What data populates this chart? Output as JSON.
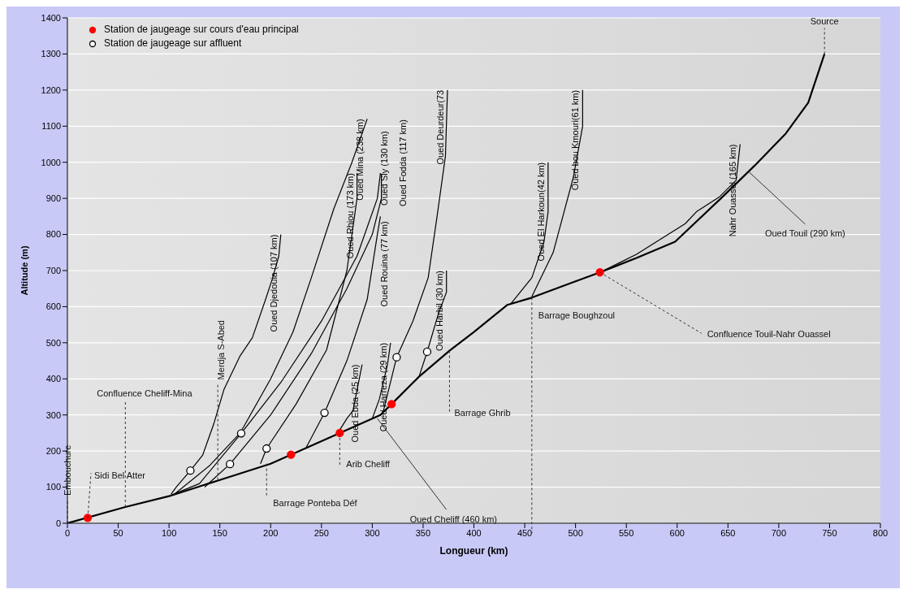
{
  "chart_data": {
    "type": "line",
    "xlabel": "Longueur (km)",
    "ylabel": "Altitude (m)",
    "xlim": [
      0,
      800
    ],
    "xticks": [
      0,
      50,
      100,
      150,
      200,
      250,
      300,
      350,
      400,
      450,
      500,
      550,
      600,
      650,
      700,
      750,
      800
    ],
    "ylim": [
      0,
      1400
    ],
    "yticks": [
      0,
      100,
      200,
      300,
      400,
      500,
      600,
      700,
      800,
      900,
      1000,
      1100,
      1200,
      1300,
      1400
    ],
    "grid": "y",
    "legend": "top left",
    "marker": "none",
    "line_style": "solid",
    "series": [
      {
        "color": "#000000",
        "x": [
          0,
          57,
          100,
          150,
          200,
          268,
          308,
          319,
          346,
          376,
          400,
          433,
          457,
          500,
          524
        ],
        "values": [
          0,
          45,
          75,
          120,
          165,
          250,
          300,
          330,
          406,
          478,
          530,
          605,
          625,
          670,
          695
        ]
      },
      {
        "color": "#000000",
        "x": [
          524,
          560,
          598,
          645,
          676,
          707,
          729,
          745
        ],
        "values": [
          695,
          735,
          780,
          905,
          990,
          1080,
          1165,
          1300
        ]
      },
      {
        "name": "Oued Djedouia (107 km)",
        "color": "#000000",
        "x": [
          102,
          107,
          121,
          133,
          144,
          154,
          170,
          182,
          195,
          202,
          208,
          210
        ],
        "values": [
          80,
          100,
          146,
          188,
          275,
          370,
          464,
          514,
          620,
          680,
          740,
          800
        ]
      },
      {
        "name": "Oued Mina (238 km)",
        "color": "#000000",
        "x": [
          105,
          140,
          170,
          200,
          222,
          240,
          262,
          280,
          295
        ],
        "values": [
          80,
          160,
          250,
          400,
          530,
          680,
          870,
          1000,
          1120
        ]
      },
      {
        "name": "Oued Sly (130 km)",
        "color": "#000000",
        "x": [
          100,
          130,
          171,
          210,
          250,
          285,
          305,
          308
        ],
        "values": [
          75,
          110,
          249,
          390,
          560,
          740,
          900,
          970
        ]
      },
      {
        "name": "Oued Rhiou (173 km)",
        "color": "#000000",
        "x": [
          190,
          196,
          225,
          255,
          275,
          285,
          285
        ],
        "values": [
          165,
          207,
          330,
          480,
          700,
          900,
          970
        ]
      },
      {
        "name": "Oued Fodda (117 km)",
        "color": "#000000",
        "x": [
          135,
          160,
          200,
          240,
          275,
          300,
          309,
          309
        ],
        "values": [
          100,
          164,
          300,
          470,
          650,
          800,
          900,
          968
        ]
      },
      {
        "name": "Oued Rouina (77 km)",
        "color": "#000000",
        "x": [
          235,
          253,
          275,
          295,
          305,
          308
        ],
        "values": [
          210,
          306,
          450,
          620,
          800,
          850
        ]
      },
      {
        "name": "Oued Ebda (25 km)",
        "color": "#000000",
        "x": [
          265,
          275,
          281,
          290
        ],
        "values": [
          245,
          290,
          312,
          440
        ]
      },
      {
        "name": "Oued Harreza (29 km)",
        "color": "#000000",
        "x": [
          300,
          307,
          315,
          318
        ],
        "values": [
          290,
          344,
          440,
          500
        ]
      },
      {
        "name": "Oued Deurdeur(73",
        "color": "#000000",
        "x": [
          310,
          324,
          340,
          355,
          364,
          372,
          374
        ],
        "values": [
          300,
          460,
          560,
          680,
          855,
          1017,
          1200
        ]
      },
      {
        "name": "Oued Harbil (30 km)",
        "color": "#000000",
        "x": [
          346,
          354,
          365,
          373,
          373
        ],
        "values": [
          406,
          475,
          580,
          640,
          700
        ]
      },
      {
        "name": "Oued El Harkoun(42 km)",
        "color": "#000000",
        "x": [
          436,
          457,
          469,
          473,
          473
        ],
        "values": [
          607,
          680,
          780,
          863,
          1000
        ]
      },
      {
        "name": "Oued bou Kmouri(61 km)",
        "color": "#000000",
        "x": [
          457,
          478,
          498,
          507,
          507
        ],
        "values": [
          628,
          750,
          960,
          1100,
          1200
        ]
      },
      {
        "name": "Nahr Ouassel (165 km)",
        "color": "#000000",
        "x": [
          524,
          560,
          608,
          619,
          642,
          658,
          662
        ],
        "values": [
          695,
          745,
          830,
          863,
          905,
          950,
          1050
        ]
      },
      {
        "type": "scatter",
        "name": "Station de jaugeage sur cours d'eau principal",
        "color": "#ff0000",
        "marker": "circle",
        "x": [
          20,
          220,
          268,
          319,
          524
        ],
        "values": [
          15,
          190,
          250,
          330,
          695
        ]
      },
      {
        "type": "scatter",
        "name": "Station de jaugeage sur affluent",
        "color": "#000000",
        "marker": "circle",
        "x": [
          121,
          171,
          160,
          196,
          253,
          324,
          354
        ],
        "values": [
          146,
          249,
          164,
          207,
          306,
          460,
          475
        ]
      }
    ],
    "annotations": [
      {
        "text": "Source",
        "x": 745,
        "y": 1300
      },
      {
        "text": "Embouchure",
        "x": 0,
        "y": 0
      },
      {
        "text": "Sidi Bel Atter",
        "x": 20,
        "y": 15
      },
      {
        "text": "Confluence Cheliff-Mina",
        "x": 57,
        "y": 45
      },
      {
        "text": "Merdja S-Abed",
        "x": 148,
        "y": 120
      },
      {
        "text": "Barrage Ponteba Déf",
        "x": 196,
        "y": 165
      },
      {
        "text": "Arib Cheliff",
        "x": 268,
        "y": 250
      },
      {
        "text": "Barrage Ghrib",
        "x": 376,
        "y": 478
      },
      {
        "text": "Barrage Boughzoul",
        "x": 457,
        "y": 625
      },
      {
        "text": "Confluence Touil-Nahr Ouassel",
        "x": 524,
        "y": 695
      },
      {
        "text": "Oued Cheliff (460 km)",
        "x": 305,
        "y": 290
      },
      {
        "text": "Oued Touil (290 km)",
        "x": 670,
        "y": 975
      }
    ]
  }
}
